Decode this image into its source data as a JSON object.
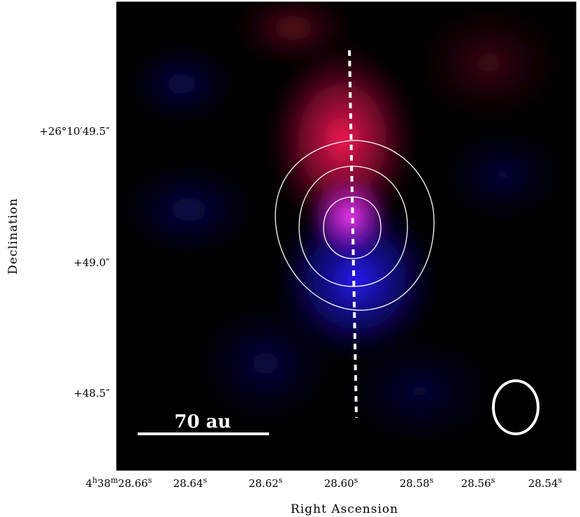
{
  "axes": {
    "xlabel": "Right Ascension",
    "ylabel": "Declination",
    "x_ticks": [
      {
        "main": "4",
        "sup1": "h",
        "mid": "38",
        "sup2": "m",
        "val": "28.66",
        "sup3": "s"
      },
      {
        "val": "28.64",
        "sup3": "s"
      },
      {
        "val": "28.62",
        "sup3": "s"
      },
      {
        "val": "28.60",
        "sup3": "s"
      },
      {
        "val": "28.58",
        "sup3": "s"
      },
      {
        "val": "28.56",
        "sup3": "s"
      },
      {
        "val": "28.54",
        "sup3": "s"
      }
    ],
    "y_ticks": [
      "+26°10′49.5″",
      "+49.0″",
      "+48.5″"
    ]
  },
  "scale_bar": {
    "label": "70 au"
  },
  "colors": {
    "red_emission": "#ff1a55",
    "blue_emission": "#2a1cff",
    "overlap": "#ff3cff",
    "contour": "#ffffff",
    "background": "#000000"
  }
}
